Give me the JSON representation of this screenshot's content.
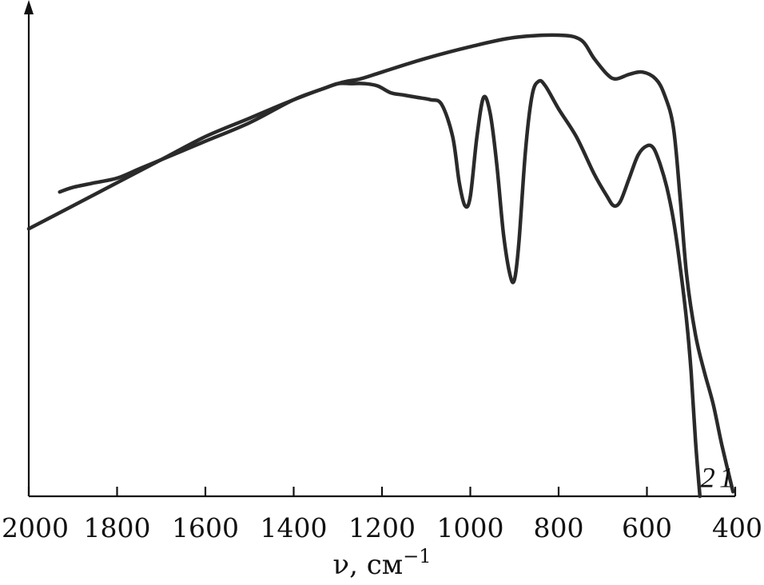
{
  "chart_data": {
    "type": "line",
    "xlabel": "ν, см",
    "xlabel_sup": "−1",
    "xlim": [
      2000,
      400
    ],
    "x_reversed": true,
    "ylim": [
      0,
      100
    ],
    "grid": false,
    "x_ticks": [
      2000,
      1800,
      1600,
      1400,
      1200,
      1000,
      800,
      600,
      400
    ],
    "series": [
      {
        "name": "1",
        "x": [
          2000,
          1900,
          1800,
          1700,
          1600,
          1500,
          1400,
          1300,
          1250,
          1200,
          1100,
          1000,
          900,
          800,
          750,
          720,
          690,
          670,
          640,
          610,
          580,
          560,
          540,
          525,
          510,
          490,
          470,
          450,
          430,
          405
        ],
        "y": [
          58,
          63,
          68,
          73,
          78,
          82,
          86,
          89.5,
          90.5,
          92,
          95,
          97.5,
          99.5,
          100,
          99,
          95,
          91.5,
          90.5,
          91.5,
          92,
          90.5,
          87,
          80,
          65,
          48,
          35,
          27,
          20,
          11,
          1
        ]
      },
      {
        "name": "2",
        "x": [
          1930,
          1900,
          1850,
          1800,
          1750,
          1700,
          1650,
          1600,
          1500,
          1400,
          1330,
          1300,
          1270,
          1240,
          1210,
          1180,
          1150,
          1120,
          1090,
          1065,
          1040,
          1025,
          1012,
          1000,
          985,
          970,
          955,
          940,
          925,
          910,
          900,
          890,
          875,
          860,
          845,
          830,
          800,
          760,
          720,
          690,
          675,
          660,
          640,
          620,
          600,
          585,
          570,
          555,
          540,
          525,
          510,
          500,
          490,
          480
        ],
        "y": [
          66,
          67,
          68,
          69,
          71,
          73,
          75,
          77,
          81,
          86,
          88.5,
          89.5,
          89.5,
          89.5,
          89,
          87.5,
          87,
          86.5,
          86,
          85,
          78,
          68,
          63,
          65,
          78,
          86.5,
          83,
          72,
          57,
          48,
          47,
          55,
          75,
          87,
          90,
          89,
          84,
          78,
          70,
          65,
          63,
          64,
          69,
          74,
          76,
          75.5,
          72,
          67,
          60,
          50,
          38,
          27,
          12,
          0
        ]
      }
    ],
    "series_labels": [
      {
        "text": "2",
        "x": 462,
        "y": 2
      },
      {
        "text": "1",
        "x": 420,
        "y": 2
      }
    ]
  }
}
